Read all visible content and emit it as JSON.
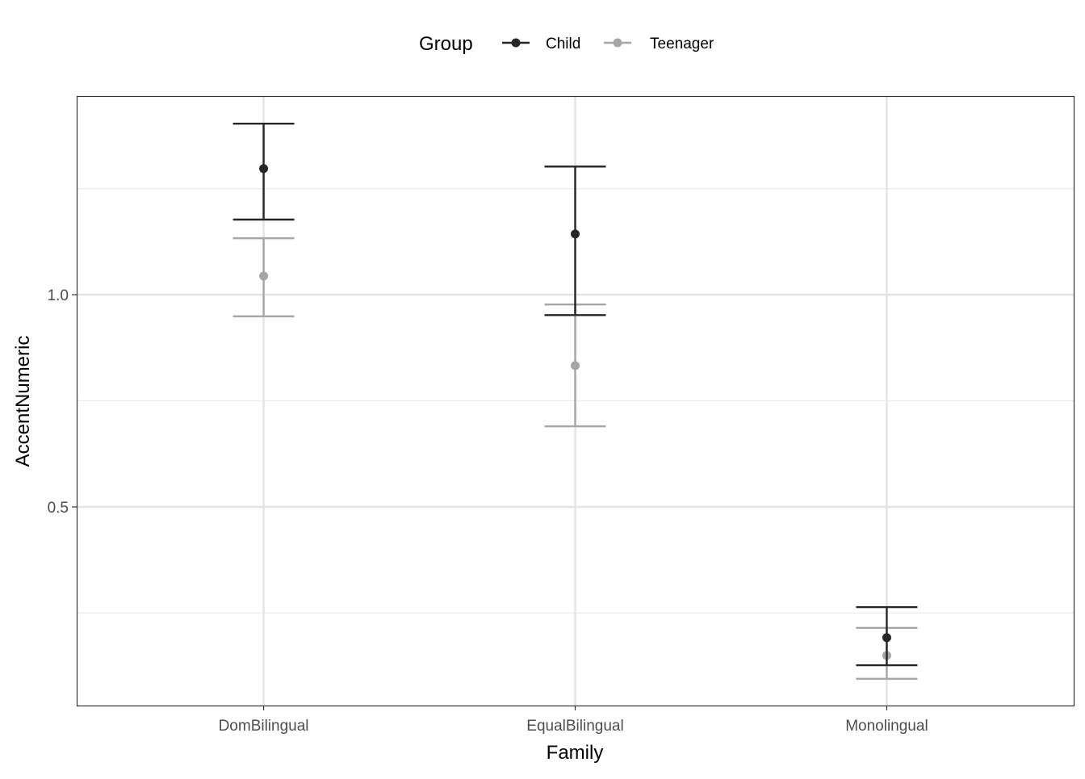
{
  "chart_data": {
    "type": "scatter",
    "subtype": "point-errorbar",
    "xlabel": "Family",
    "ylabel": "AccentNumeric",
    "categories": [
      "DomBilingual",
      "EqualBilingual",
      "Monolingual"
    ],
    "ylim": [
      0.032,
      1.468
    ],
    "yticks": [
      0.5,
      1.0
    ],
    "ytick_labels": [
      "0.5",
      "1.0"
    ],
    "minor_yticks": [
      0.25,
      0.75,
      1.25
    ],
    "grid": true,
    "legend": {
      "title": "Group",
      "placement": "top"
    },
    "series": [
      {
        "name": "Child",
        "color": "#262626",
        "values": [
          1.297,
          1.143,
          0.192
        ],
        "upper": [
          1.403,
          1.302,
          0.264
        ],
        "lower": [
          1.177,
          0.952,
          0.127
        ]
      },
      {
        "name": "Teenager",
        "color": "#a6a6a6",
        "values": [
          1.044,
          0.833,
          0.15
        ],
        "upper": [
          1.133,
          0.977,
          0.215
        ],
        "lower": [
          0.949,
          0.69,
          0.095
        ]
      }
    ]
  }
}
